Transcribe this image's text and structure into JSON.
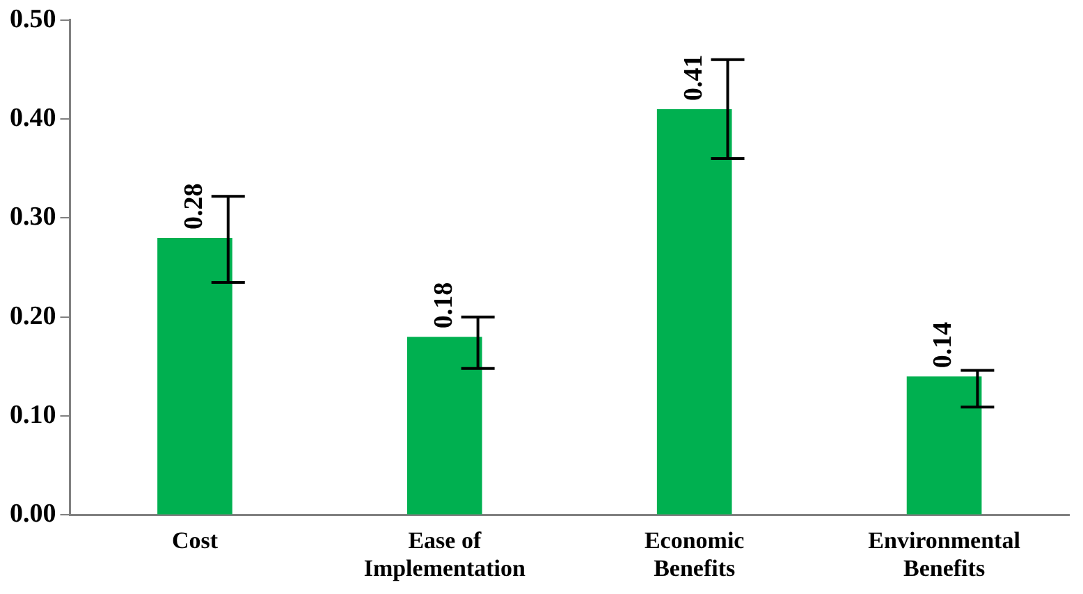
{
  "chart_data": {
    "type": "bar",
    "categories": [
      "Cost",
      "Ease of Implementation",
      "Economic Benefits",
      "Environmental Benefits"
    ],
    "values": [
      0.28,
      0.18,
      0.41,
      0.14
    ],
    "color": "#00b050",
    "errors": [
      [
        0.235,
        0.322
      ],
      [
        0.148,
        0.2
      ],
      [
        0.36,
        0.46
      ],
      [
        0.109,
        0.146
      ]
    ],
    "ylim": [
      0,
      0.5
    ],
    "yticks": [
      {
        "value": 0,
        "label": "0.00"
      },
      {
        "value": 0.1,
        "label": "0.10"
      },
      {
        "value": 0.2,
        "label": "0.20"
      },
      {
        "value": 0.3,
        "label": "0.30"
      },
      {
        "value": 0.4,
        "label": "0.40"
      },
      {
        "value": 0.5,
        "label": "0.50"
      }
    ],
    "data_labels": true,
    "grid": false,
    "legend": false
  }
}
